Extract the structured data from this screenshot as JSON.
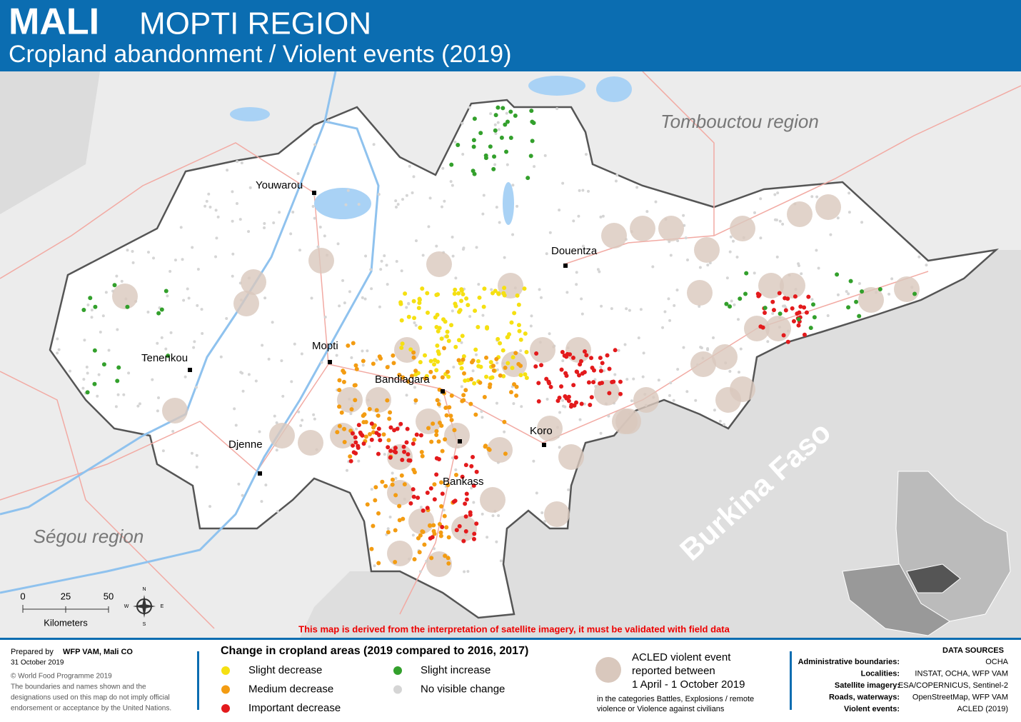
{
  "header": {
    "title": "MALI",
    "region": "MOPTI REGION",
    "subtitle": "Cropland abandonment / Violent events (2019)"
  },
  "map": {
    "regions": [
      "Tombouctou region",
      "Ségou region",
      "Burkina Faso"
    ],
    "cities": [
      "Youwarou",
      "Douentza",
      "Tenenkou",
      "Mopti",
      "Bandiagara",
      "Djenne",
      "Koro",
      "Bankass"
    ],
    "scale": {
      "ticks": [
        0,
        25,
        50
      ],
      "unit": "Kilometers"
    },
    "compass": [
      "N",
      "W",
      "E",
      "S"
    ],
    "warning": "This map is derived from the interpretation of satellite imagery, it must be validated with field data"
  },
  "footer": {
    "prepared_label": "Prepared by",
    "prepared_by": "WFP VAM, Mali CO",
    "date": "31 October 2019",
    "copyright": "© World Food Programme 2019",
    "disclaimer": [
      "The boundaries and names shown and the",
      "designations used on this map do not imply official",
      "endorsement or acceptance by the United Nations."
    ]
  },
  "legend": {
    "title": "Change in cropland areas (2019 compared to 2016, 2017)",
    "items": [
      "Slight decrease",
      "Medium decrease",
      "Important decrease",
      "Slight increase",
      "No visible change"
    ],
    "acled": [
      "ACLED violent event",
      "reported between",
      "1 April - 1 October 2019"
    ],
    "acled_note": [
      "in the categories Battles, Explosions / remote",
      "violence or Violence against civilians"
    ]
  },
  "sources": {
    "title": "DATA SOURCES",
    "rows": [
      {
        "label": "Administrative boundaries:",
        "value": "OCHA"
      },
      {
        "label": "Localities:",
        "value": "INSTAT, OCHA, WFP VAM"
      },
      {
        "label": "Satellite imagery:",
        "value": "ESA/COPERNICUS, Sentinel-2"
      },
      {
        "label": "Roads, waterways:",
        "value": "OpenStreetMap, WFP VAM"
      },
      {
        "label": "Violent events:",
        "value": "ACLED (2019)"
      }
    ]
  }
}
